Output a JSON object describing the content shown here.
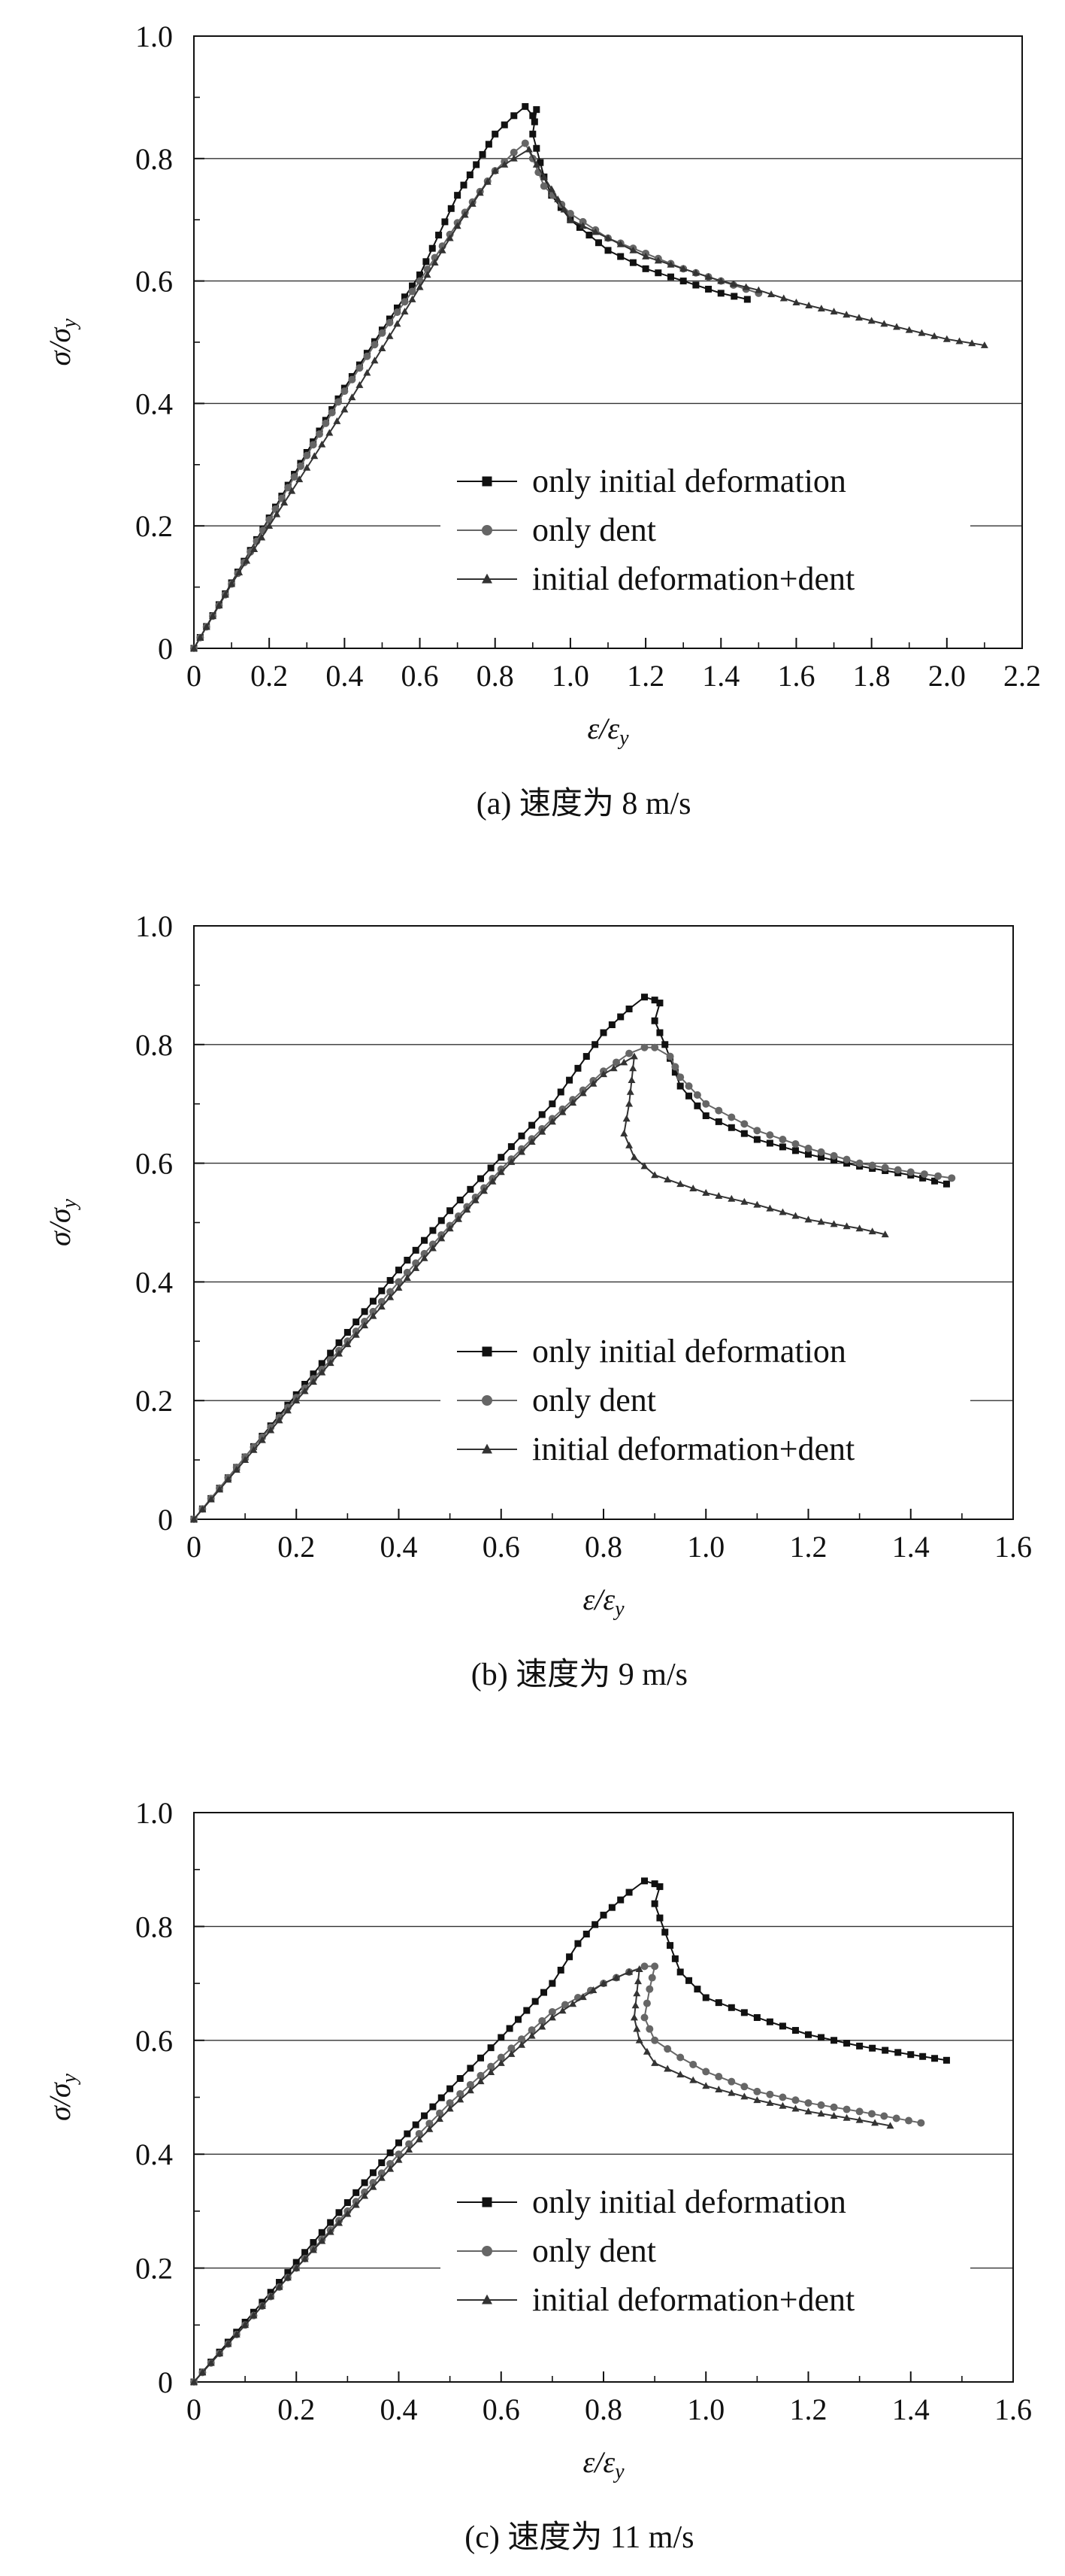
{
  "chart_data": [
    {
      "type": "line",
      "caption": "(a) 速度为 8 m/s",
      "xlabel": "ε/ε",
      "xlabel_sub": "y",
      "ylabel": "σ/σ",
      "ylabel_sub": "y",
      "xlim": [
        0,
        2.2
      ],
      "ylim": [
        0,
        1.0
      ],
      "x_ticks": [
        "0",
        "0.2",
        "0.4",
        "0.6",
        "0.8",
        "1.0",
        "1.2",
        "1.4",
        "1.6",
        "1.8",
        "2.0",
        "2.2"
      ],
      "y_ticks": [
        "0",
        "0.2",
        "0.4",
        "0.6",
        "0.8",
        "1.0"
      ],
      "grid": "horizontal",
      "legend_position": "bottom-right",
      "series": [
        {
          "name": "only initial deformation",
          "marker": "square",
          "color": "#111111",
          "x": [
            0,
            0.1,
            0.2,
            0.3,
            0.4,
            0.5,
            0.6,
            0.65,
            0.7,
            0.75,
            0.8,
            0.85,
            0.88,
            0.9,
            0.91,
            0.9,
            0.93,
            0.95,
            1.0,
            1.1,
            1.2,
            1.3,
            1.4,
            1.47
          ],
          "y": [
            0,
            0.107,
            0.213,
            0.32,
            0.425,
            0.52,
            0.61,
            0.675,
            0.74,
            0.79,
            0.84,
            0.87,
            0.885,
            0.87,
            0.88,
            0.84,
            0.77,
            0.74,
            0.7,
            0.65,
            0.62,
            0.6,
            0.58,
            0.57
          ]
        },
        {
          "name": "only dent",
          "marker": "circle",
          "color": "#666666",
          "x": [
            0,
            0.1,
            0.2,
            0.3,
            0.4,
            0.5,
            0.6,
            0.7,
            0.8,
            0.85,
            0.88,
            0.9,
            0.93,
            1.0,
            1.1,
            1.2,
            1.3,
            1.4,
            1.5
          ],
          "y": [
            0,
            0.105,
            0.21,
            0.315,
            0.42,
            0.515,
            0.6,
            0.695,
            0.78,
            0.81,
            0.825,
            0.8,
            0.755,
            0.71,
            0.67,
            0.645,
            0.62,
            0.6,
            0.58
          ]
        },
        {
          "name": "initial deformation+dent",
          "marker": "triangle",
          "color": "#333333",
          "x": [
            0,
            0.1,
            0.2,
            0.3,
            0.4,
            0.5,
            0.6,
            0.7,
            0.8,
            0.85,
            0.89,
            0.91,
            0.95,
            1.0,
            1.2,
            1.4,
            1.5,
            1.6,
            1.8,
            2.0,
            2.1
          ],
          "y": [
            0,
            0.105,
            0.2,
            0.295,
            0.39,
            0.49,
            0.59,
            0.69,
            0.78,
            0.8,
            0.815,
            0.79,
            0.75,
            0.7,
            0.64,
            0.6,
            0.585,
            0.565,
            0.535,
            0.505,
            0.495
          ]
        }
      ]
    },
    {
      "type": "line",
      "caption": "(b) 速度为 9 m/s",
      "xlabel": "ε/ε",
      "xlabel_sub": "y",
      "ylabel": "σ/σ",
      "ylabel_sub": "y",
      "xlim": [
        0,
        1.6
      ],
      "ylim": [
        0,
        1.0
      ],
      "x_ticks": [
        "0",
        "0.2",
        "0.4",
        "0.6",
        "0.8",
        "1.0",
        "1.2",
        "1.4",
        "1.6"
      ],
      "y_ticks": [
        "0",
        "0.2",
        "0.4",
        "0.6",
        "0.8",
        "1.0"
      ],
      "grid": "horizontal",
      "legend_position": "bottom-right",
      "series": [
        {
          "name": "only initial deformation",
          "marker": "square",
          "color": "#111111",
          "x": [
            0,
            0.1,
            0.2,
            0.3,
            0.4,
            0.5,
            0.6,
            0.7,
            0.75,
            0.8,
            0.85,
            0.88,
            0.9,
            0.91,
            0.9,
            0.92,
            0.95,
            1.0,
            1.1,
            1.2,
            1.3,
            1.4,
            1.47
          ],
          "y": [
            0,
            0.105,
            0.21,
            0.315,
            0.42,
            0.52,
            0.61,
            0.7,
            0.76,
            0.82,
            0.86,
            0.88,
            0.875,
            0.87,
            0.84,
            0.8,
            0.73,
            0.68,
            0.64,
            0.615,
            0.595,
            0.58,
            0.565
          ]
        },
        {
          "name": "only dent",
          "marker": "circle",
          "color": "#666666",
          "x": [
            0,
            0.1,
            0.2,
            0.3,
            0.4,
            0.5,
            0.6,
            0.7,
            0.8,
            0.85,
            0.88,
            0.9,
            0.93,
            0.95,
            1.0,
            1.1,
            1.2,
            1.3,
            1.4,
            1.48
          ],
          "y": [
            0,
            0.105,
            0.205,
            0.3,
            0.4,
            0.495,
            0.59,
            0.675,
            0.755,
            0.785,
            0.795,
            0.795,
            0.78,
            0.745,
            0.7,
            0.655,
            0.625,
            0.6,
            0.585,
            0.575
          ]
        },
        {
          "name": "initial deformation+dent",
          "marker": "triangle",
          "color": "#333333",
          "x": [
            0,
            0.1,
            0.2,
            0.3,
            0.4,
            0.5,
            0.6,
            0.7,
            0.8,
            0.86,
            0.85,
            0.84,
            0.86,
            0.9,
            1.0,
            1.1,
            1.2,
            1.3,
            1.35
          ],
          "y": [
            0,
            0.1,
            0.2,
            0.295,
            0.39,
            0.49,
            0.585,
            0.67,
            0.75,
            0.78,
            0.7,
            0.65,
            0.61,
            0.58,
            0.55,
            0.53,
            0.505,
            0.49,
            0.48
          ]
        }
      ]
    },
    {
      "type": "line",
      "caption": "(c) 速度为 11 m/s",
      "xlabel": "ε/ε",
      "xlabel_sub": "y",
      "ylabel": "σ/σ",
      "ylabel_sub": "y",
      "xlim": [
        0,
        1.6
      ],
      "ylim": [
        0,
        1.0
      ],
      "x_ticks": [
        "0",
        "0.2",
        "0.4",
        "0.6",
        "0.8",
        "1.0",
        "1.2",
        "1.4",
        "1.6"
      ],
      "y_ticks": [
        "0",
        "0.2",
        "0.4",
        "0.6",
        "0.8",
        "1.0"
      ],
      "grid": "horizontal",
      "legend_position": "bottom-right",
      "series": [
        {
          "name": "only initial deformation",
          "marker": "square",
          "color": "#111111",
          "x": [
            0,
            0.1,
            0.2,
            0.3,
            0.4,
            0.5,
            0.6,
            0.7,
            0.75,
            0.8,
            0.85,
            0.88,
            0.9,
            0.91,
            0.9,
            0.92,
            0.95,
            1.0,
            1.1,
            1.2,
            1.3,
            1.4,
            1.47
          ],
          "y": [
            0,
            0.105,
            0.21,
            0.315,
            0.42,
            0.515,
            0.605,
            0.7,
            0.77,
            0.82,
            0.86,
            0.88,
            0.875,
            0.87,
            0.84,
            0.79,
            0.72,
            0.675,
            0.64,
            0.61,
            0.59,
            0.575,
            0.565
          ]
        },
        {
          "name": "only dent",
          "marker": "circle",
          "color": "#666666",
          "x": [
            0,
            0.1,
            0.2,
            0.3,
            0.4,
            0.5,
            0.6,
            0.7,
            0.8,
            0.85,
            0.88,
            0.9,
            0.89,
            0.88,
            0.9,
            0.95,
            1.0,
            1.1,
            1.2,
            1.3,
            1.42
          ],
          "y": [
            0,
            0.1,
            0.2,
            0.3,
            0.4,
            0.49,
            0.57,
            0.65,
            0.7,
            0.72,
            0.73,
            0.73,
            0.69,
            0.64,
            0.6,
            0.57,
            0.545,
            0.51,
            0.49,
            0.475,
            0.455
          ]
        },
        {
          "name": "initial deformation+dent",
          "marker": "triangle",
          "color": "#333333",
          "x": [
            0,
            0.1,
            0.2,
            0.3,
            0.4,
            0.5,
            0.6,
            0.7,
            0.8,
            0.85,
            0.87,
            0.86,
            0.87,
            0.9,
            1.0,
            1.1,
            1.2,
            1.3,
            1.36
          ],
          "y": [
            0,
            0.1,
            0.2,
            0.295,
            0.39,
            0.48,
            0.56,
            0.64,
            0.7,
            0.72,
            0.725,
            0.64,
            0.6,
            0.56,
            0.52,
            0.495,
            0.475,
            0.46,
            0.45
          ]
        }
      ]
    }
  ]
}
